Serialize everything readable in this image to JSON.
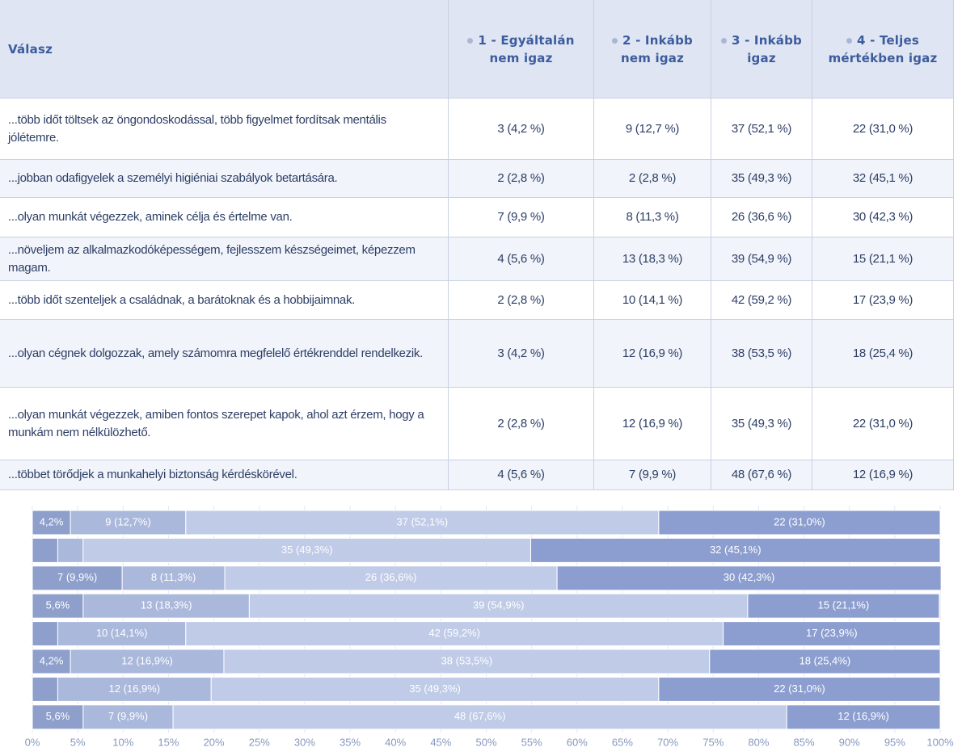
{
  "table": {
    "header": [
      "Válasz",
      "1 - Egyáltalán nem igaz",
      "2 - Inkább nem igaz",
      "3 - Inkább igaz",
      "4 - Teljes mértékben igaz"
    ],
    "rows": [
      [
        "...több időt töltsek az öngondoskodással, több figyelmet fordítsak mentális jólétemre.",
        "3 (4,2 %)",
        "9 (12,7 %)",
        "37 (52,1 %)",
        "22 (31,0 %)"
      ],
      [
        "...jobban odafigyelek a személyi higiéniai szabályok betartására.",
        "2 (2,8 %)",
        "2 (2,8 %)",
        "35 (49,3 %)",
        "32 (45,1 %)"
      ],
      [
        "...olyan munkát végezzek, aminek célja és értelme van.",
        "7 (9,9 %)",
        "8 (11,3 %)",
        "26 (36,6 %)",
        "30 (42,3 %)"
      ],
      [
        "...növeljem az alkalmazkodóképességem, fejlesszem készségeimet, képezzem magam.",
        "4 (5,6 %)",
        "13 (18,3 %)",
        "39 (54,9 %)",
        "15 (21,1 %)"
      ],
      [
        "...több időt szenteljek a családnak, a barátoknak és a hobbijaimnak.",
        "2 (2,8 %)",
        "10 (14,1 %)",
        "42 (59,2 %)",
        "17 (23,9 %)"
      ],
      [
        "...olyan cégnek dolgozzak, amely számomra megfelelő értékrenddel rendelkezik.",
        "3 (4,2 %)",
        "12 (16,9 %)",
        "38 (53,5 %)",
        "18 (25,4 %)"
      ],
      [
        "...olyan munkát végezzek, amiben fontos szerepet kapok, ahol azt érzem, hogy a munkám nem nélkülözhető.",
        "2 (2,8 %)",
        "12 (16,9 %)",
        "35 (49,3 %)",
        "22 (31,0 %)"
      ],
      [
        "...többet törődjek a munkahelyi biztonság kérdéskörével.",
        "4 (5,6 %)",
        "7 (9,9 %)",
        "48 (67,6 %)",
        "12 (16,9 %)"
      ]
    ]
  },
  "chart_data": {
    "type": "stacked_barh",
    "categories": [
      null,
      null,
      null,
      null,
      null,
      null,
      null,
      null
    ],
    "series": [
      {
        "color": "#8e9fcc",
        "values": [
          4.2,
          2.8,
          9.9,
          5.6,
          2.8,
          4.2,
          2.8,
          5.6
        ],
        "value_labels": [
          "4,2%",
          null,
          "7 (9,9%)",
          "5,6%",
          null,
          "4,2%",
          null,
          "5,6%"
        ]
      },
      {
        "color": "#aab8dc",
        "values": [
          12.7,
          2.8,
          11.3,
          18.3,
          14.1,
          16.9,
          16.9,
          9.9
        ],
        "value_labels": [
          "9 (12,7%)",
          null,
          "8 (11,3%)",
          "13 (18,3%)",
          "10 (14,1%)",
          "12 (16,9%)",
          "12 (16,9%)",
          "7 (9,9%)"
        ]
      },
      {
        "color": "#bfcbe7",
        "values": [
          52.1,
          49.3,
          36.6,
          54.9,
          59.2,
          53.5,
          49.3,
          67.6
        ],
        "value_labels": [
          "37 (52,1%)",
          "35 (49,3%)",
          "26 (36,6%)",
          "39 (54,9%)",
          "42 (59,2%)",
          "38 (53,5%)",
          "35 (49,3%)",
          "48 (67,6%)"
        ]
      },
      {
        "color": "#8c9ed0",
        "values": [
          31.0,
          45.1,
          42.3,
          21.1,
          23.9,
          25.4,
          31.0,
          16.9
        ],
        "value_labels": [
          "22 (31,0%)",
          "32 (45,1%)",
          "30 (42,3%)",
          "15 (21,1%)",
          "17 (23,9%)",
          "18 (25,4%)",
          "22 (31,0%)",
          "12 (16,9%)"
        ]
      }
    ],
    "xlim": [
      0,
      100
    ],
    "xticks": [
      {
        "value": 0,
        "label": "0%"
      },
      {
        "value": 5,
        "label": "5%"
      },
      {
        "value": 10,
        "label": "10%"
      },
      {
        "value": 15,
        "label": "15%"
      },
      {
        "value": 20,
        "label": "20%"
      },
      {
        "value": 25,
        "label": "25%"
      },
      {
        "value": 30,
        "label": "30%"
      },
      {
        "value": 35,
        "label": "35%"
      },
      {
        "value": 40,
        "label": "40%"
      },
      {
        "value": 45,
        "label": "45%"
      },
      {
        "value": 50,
        "label": "50%"
      },
      {
        "value": 55,
        "label": "55%"
      },
      {
        "value": 60,
        "label": "60%"
      },
      {
        "value": 65,
        "label": "65%"
      },
      {
        "value": 70,
        "label": "70%"
      },
      {
        "value": 75,
        "label": "75%"
      },
      {
        "value": 80,
        "label": "80%"
      },
      {
        "value": 85,
        "label": "85%"
      },
      {
        "value": 90,
        "label": "90%"
      },
      {
        "value": 95,
        "label": "95%"
      },
      {
        "value": 100,
        "label": "100%"
      }
    ],
    "grid": true
  }
}
